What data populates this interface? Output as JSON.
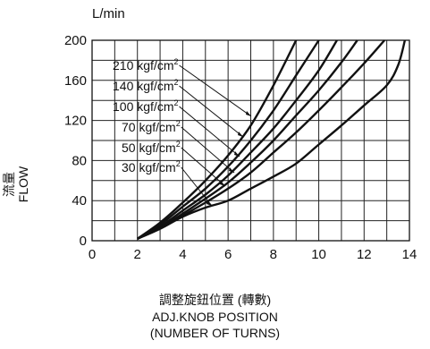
{
  "chart_data": {
    "type": "line",
    "y_unit": "L/min",
    "y_title_zh": "流量",
    "y_title_en": "FLOW",
    "x_title_zh": "調整旋鈕位置 (轉數)",
    "x_title_en": "ADJ.KNOB POSITION",
    "x_title_en2": "(NUMBER OF TURNS)",
    "xlim": [
      0,
      14
    ],
    "ylim": [
      0,
      200
    ],
    "x_ticks": [
      "0",
      "2",
      "4",
      "6",
      "8",
      "10",
      "12",
      "14"
    ],
    "y_ticks": [
      "0",
      "40",
      "80",
      "120",
      "160",
      "200"
    ],
    "x_tick_values": [
      0,
      2,
      4,
      6,
      8,
      10,
      12,
      14
    ],
    "y_tick_values": [
      0,
      40,
      80,
      120,
      160,
      200
    ],
    "grid": true,
    "series": [
      {
        "name": "210 kgf/cm²",
        "label": "210 kgf/cm",
        "sup": "2",
        "points": [
          [
            2,
            2
          ],
          [
            3,
            18
          ],
          [
            4,
            38
          ],
          [
            5,
            60
          ],
          [
            6,
            85
          ],
          [
            7,
            115
          ],
          [
            8,
            155
          ],
          [
            9,
            200
          ]
        ]
      },
      {
        "name": "140 kgf/cm²",
        "label": "140 kgf/cm",
        "sup": "2",
        "points": [
          [
            2,
            2
          ],
          [
            3,
            16
          ],
          [
            4,
            34
          ],
          [
            5,
            52
          ],
          [
            6,
            74
          ],
          [
            7,
            100
          ],
          [
            8,
            130
          ],
          [
            9,
            165
          ],
          [
            10,
            200
          ]
        ]
      },
      {
        "name": "100 kgf/cm²",
        "label": "100 kgf/cm",
        "sup": "2",
        "points": [
          [
            2,
            2
          ],
          [
            3,
            14
          ],
          [
            4,
            30
          ],
          [
            5,
            46
          ],
          [
            6,
            65
          ],
          [
            7,
            88
          ],
          [
            8,
            112
          ],
          [
            9,
            140
          ],
          [
            10,
            170
          ],
          [
            10.8,
            200
          ]
        ]
      },
      {
        "name": "70 kgf/cm²",
        "label": "70 kgf/cm",
        "sup": "2",
        "points": [
          [
            2,
            2
          ],
          [
            3,
            13
          ],
          [
            4,
            27
          ],
          [
            5,
            42
          ],
          [
            6,
            58
          ],
          [
            7,
            78
          ],
          [
            8,
            100
          ],
          [
            9,
            125
          ],
          [
            10,
            150
          ],
          [
            11,
            178
          ],
          [
            11.7,
            200
          ]
        ]
      },
      {
        "name": "50 kgf/cm²",
        "label": "50 kgf/cm",
        "sup": "2",
        "points": [
          [
            2,
            2
          ],
          [
            3,
            12
          ],
          [
            4,
            25
          ],
          [
            5,
            38
          ],
          [
            6,
            52
          ],
          [
            7,
            68
          ],
          [
            8,
            88
          ],
          [
            9,
            108
          ],
          [
            10,
            130
          ],
          [
            11,
            153
          ],
          [
            12,
            177
          ],
          [
            12.9,
            200
          ]
        ]
      },
      {
        "name": "30 kgf/cm²",
        "label": "30 kgf/cm",
        "sup": "2",
        "points": [
          [
            2,
            2
          ],
          [
            3,
            12
          ],
          [
            4,
            24
          ],
          [
            5,
            33
          ],
          [
            6,
            40
          ],
          [
            7,
            52
          ],
          [
            8,
            64
          ],
          [
            9,
            77
          ],
          [
            10,
            96
          ],
          [
            11,
            115
          ],
          [
            12,
            135
          ],
          [
            13,
            155
          ],
          [
            13.5,
            175
          ],
          [
            13.8,
            200
          ]
        ]
      }
    ]
  }
}
